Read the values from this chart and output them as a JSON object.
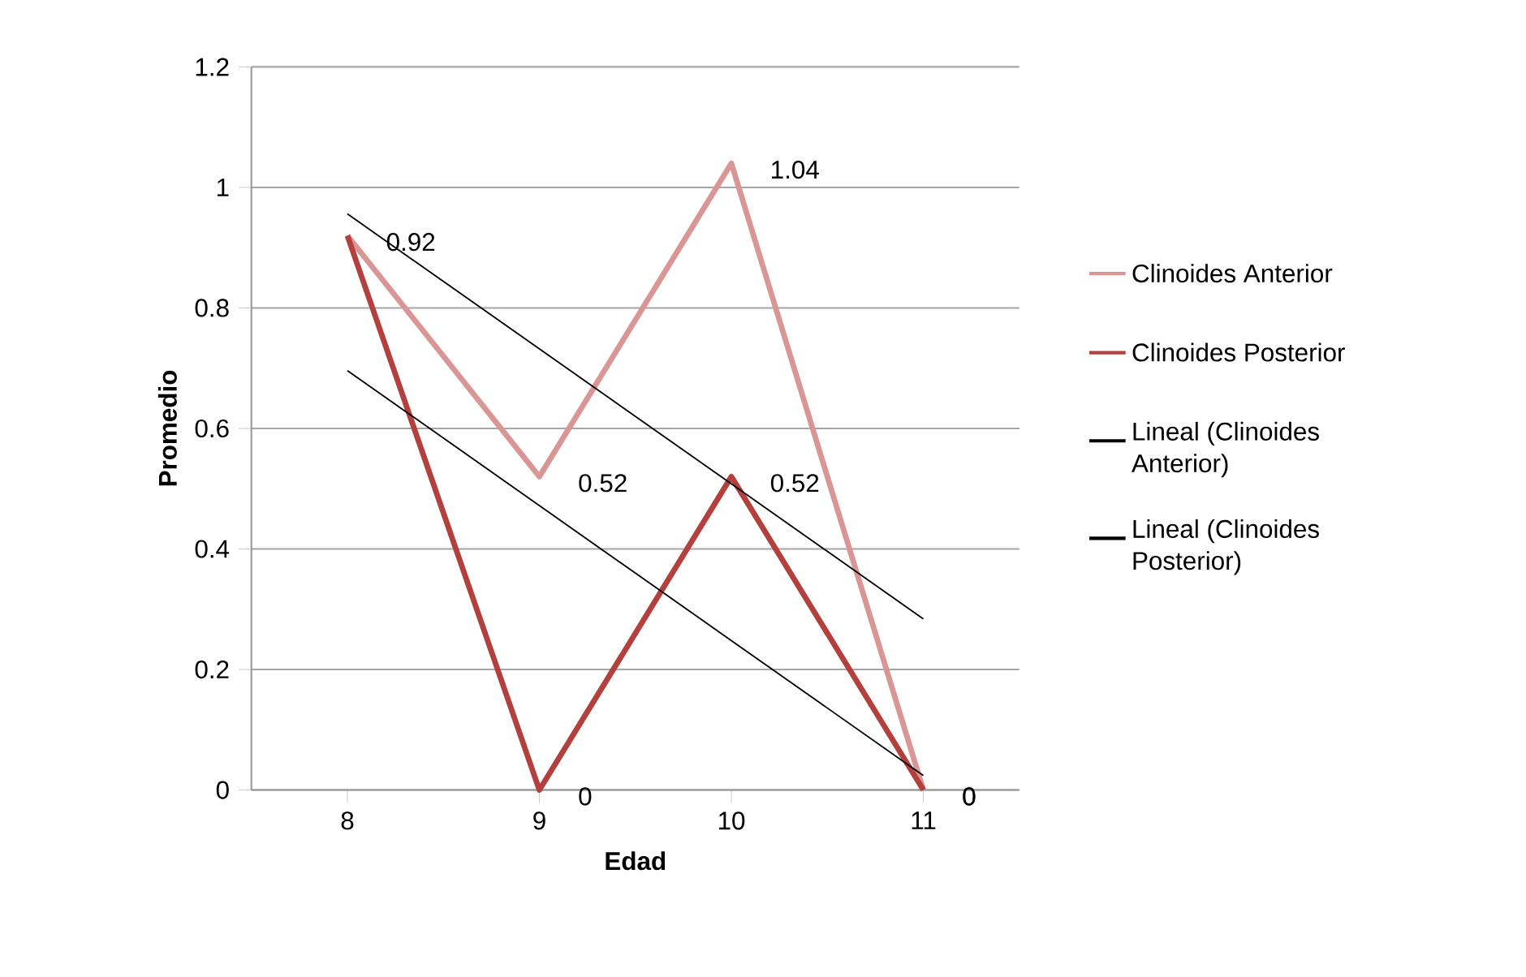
{
  "chart_data": {
    "type": "line",
    "xlabel": "Edad",
    "ylabel": "Promedio",
    "x": [
      8,
      9,
      10,
      11
    ],
    "xlim": [
      7.5,
      11.5
    ],
    "xticks": [
      8,
      9,
      10,
      11
    ],
    "ylim": [
      0,
      1.2
    ],
    "yticks": [
      0,
      0.2,
      0.4,
      0.6,
      0.8,
      1,
      1.2
    ],
    "grid": "y",
    "legend": "right",
    "marker": "none",
    "line_style": "solid",
    "series": [
      {
        "name": "Clinoides Anterior",
        "color": "#d99694",
        "values": [
          0.92,
          0.52,
          1.04,
          0
        ],
        "value_labels": [
          "0.92",
          "0.52",
          "1.04",
          "0"
        ]
      },
      {
        "name": "Clinoides Posterior",
        "color": "#b3403d",
        "values": [
          0.92,
          0,
          0.52,
          0
        ],
        "value_labels": [
          null,
          "0",
          "0.52",
          "0"
        ]
      },
      {
        "name": "Lineal (Clinoides Anterior)",
        "type": "line",
        "color": "#000000",
        "values": [
          0.956,
          0.732,
          0.508,
          0.284
        ]
      },
      {
        "name": "Lineal (Clinoides Posterior)",
        "type": "line",
        "color": "#000000",
        "values": [
          0.696,
          0.472,
          0.248,
          0.024
        ]
      }
    ]
  }
}
